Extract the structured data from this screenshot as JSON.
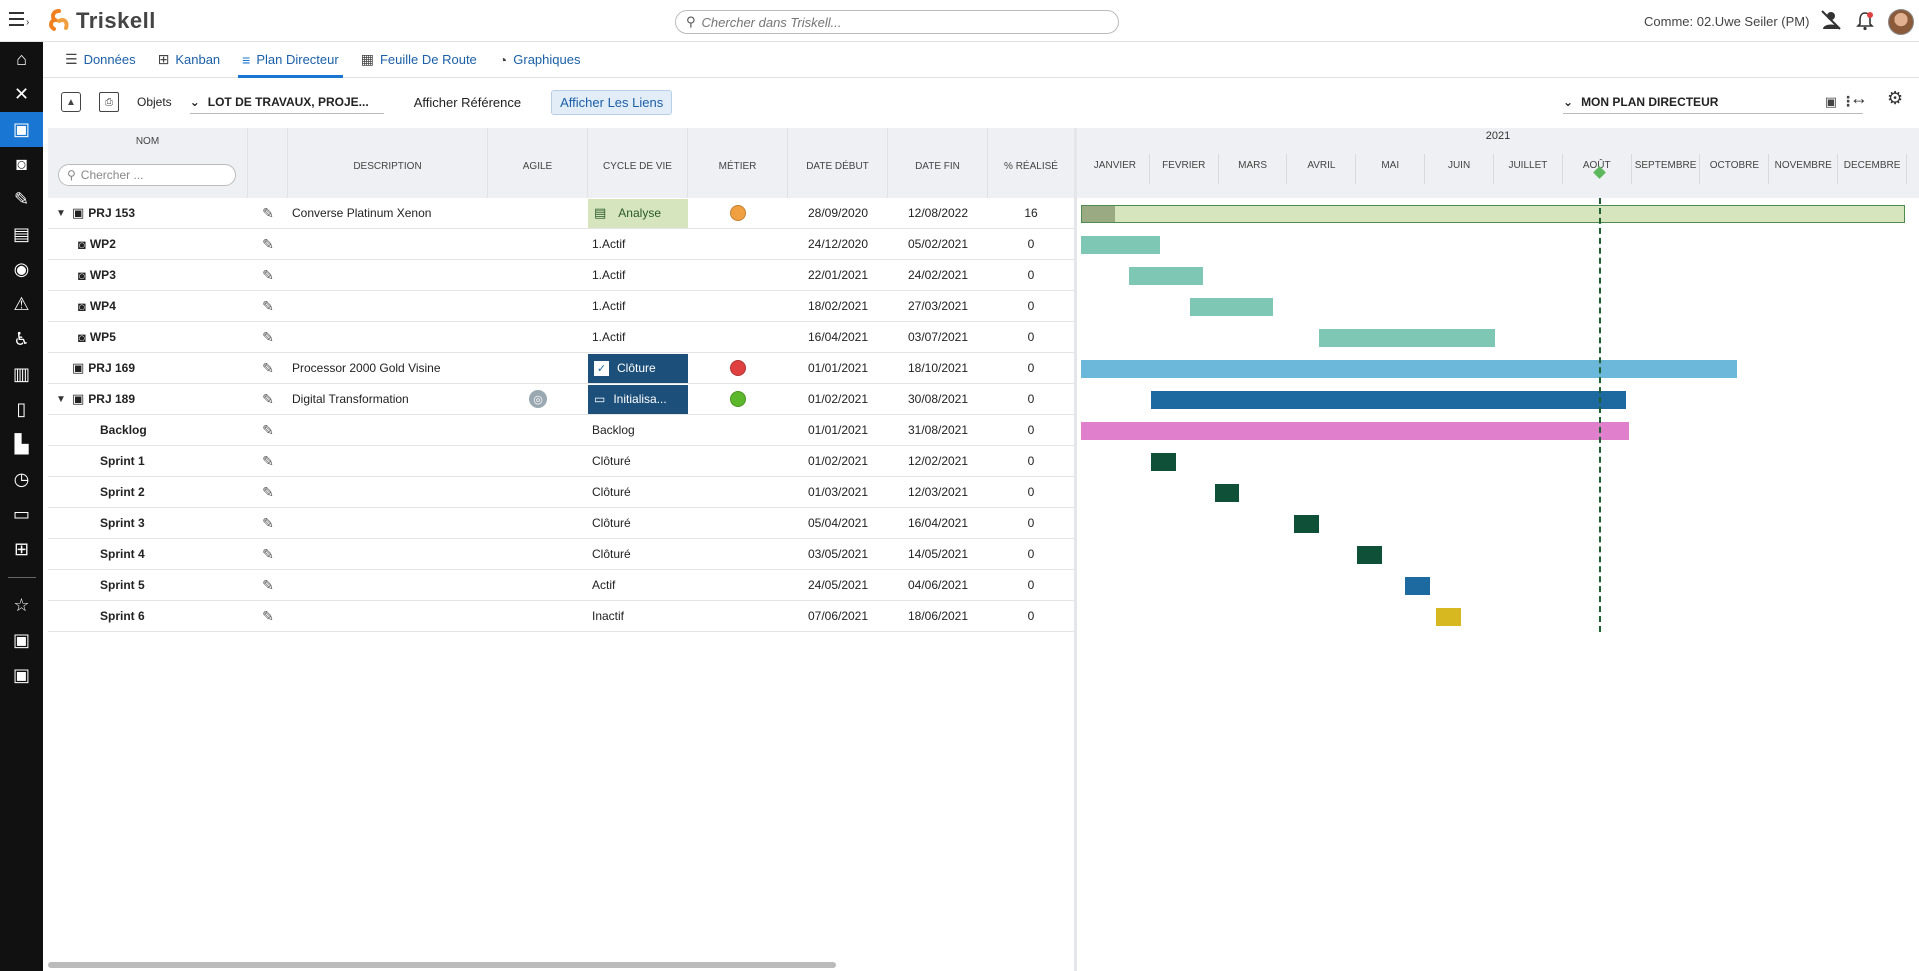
{
  "app": {
    "logo_text": "Triskell",
    "search_placeholder": "Chercher dans Triskell...",
    "user_label": "Comme: 02.Uwe Seiler (PM)"
  },
  "rail": {
    "items": [
      "home-icon",
      "tools-icon",
      "briefcase-icon",
      "briefcase-clock-icon",
      "document-edit-icon",
      "report-icon",
      "location-pin-icon",
      "warning-icon",
      "accessibility-icon",
      "briefcase-alt-icon",
      "scroll-icon",
      "chart-bars-icon",
      "clock-icon",
      "folders-icon",
      "org-chart-icon",
      "star-icon",
      "briefcase-icon",
      "briefcase-icon"
    ],
    "active_index": 2
  },
  "tabs": [
    {
      "label": "Données",
      "icon": "list-icon"
    },
    {
      "label": "Kanban",
      "icon": "kanban-icon"
    },
    {
      "label": "Plan Directeur",
      "icon": "plan-icon",
      "active": true
    },
    {
      "label": "Feuille De Route",
      "icon": "map-icon"
    },
    {
      "label": "Graphiques",
      "icon": "pie-icon"
    }
  ],
  "toolbar": {
    "objects_label": "Objets",
    "objects_select": "LOT DE TRAVAUX, PROJE...",
    "show_reference": "Afficher Référence",
    "show_links": "Afficher Les Liens",
    "plan_select": "MON PLAN DIRECTEUR"
  },
  "columns": {
    "name": "NOM",
    "name_search_placeholder": "Chercher ...",
    "description": "DESCRIPTION",
    "agile": "AGILE",
    "cycle": "CYCLE DE VIE",
    "metier": "MÉTIER",
    "start": "DATE DÉBUT",
    "end": "DATE FIN",
    "pct": "% RÉALISÉ"
  },
  "rows": [
    {
      "name": "PRJ 153",
      "level": 0,
      "expanded": true,
      "icon": "briefcase",
      "description": "Converse Platinum Xenon",
      "agile": false,
      "cycle": "Analyse",
      "cycle_style": "analyse",
      "metier_color": "#f0a040",
      "start": "28/09/2020",
      "end": "12/08/2022",
      "pct": "16"
    },
    {
      "name": "WP2",
      "level": 1,
      "icon": "wp",
      "description": "",
      "cycle": "1.Actif",
      "start": "24/12/2020",
      "end": "05/02/2021",
      "pct": "0"
    },
    {
      "name": "WP3",
      "level": 1,
      "icon": "wp",
      "description": "",
      "cycle": "1.Actif",
      "start": "22/01/2021",
      "end": "24/02/2021",
      "pct": "0"
    },
    {
      "name": "WP4",
      "level": 1,
      "icon": "wp",
      "description": "",
      "cycle": "1.Actif",
      "start": "18/02/2021",
      "end": "27/03/2021",
      "pct": "0"
    },
    {
      "name": "WP5",
      "level": 1,
      "icon": "wp",
      "description": "",
      "cycle": "1.Actif",
      "start": "16/04/2021",
      "end": "03/07/2021",
      "pct": "0"
    },
    {
      "name": "PRJ 169",
      "level": 0,
      "icon": "briefcase",
      "description": "Processor 2000 Gold Visine",
      "cycle": "Clôture",
      "cycle_style": "cloture",
      "metier_color": "#e04040",
      "start": "01/01/2021",
      "end": "18/10/2021",
      "pct": "0"
    },
    {
      "name": "PRJ 189",
      "level": 0,
      "expanded": true,
      "icon": "briefcase",
      "description": "Digital Transformation",
      "agile": true,
      "cycle": "Initialisa...",
      "cycle_style": "init",
      "metier_color": "#5cb82a",
      "start": "01/02/2021",
      "end": "30/08/2021",
      "pct": "0"
    },
    {
      "name": "Backlog",
      "level": 2,
      "description": "",
      "cycle": "Backlog",
      "start": "01/01/2021",
      "end": "31/08/2021",
      "pct": "0"
    },
    {
      "name": "Sprint 1",
      "level": 2,
      "description": "",
      "cycle": "Clôturé",
      "start": "01/02/2021",
      "end": "12/02/2021",
      "pct": "0"
    },
    {
      "name": "Sprint 2",
      "level": 2,
      "description": "",
      "cycle": "Clôturé",
      "start": "01/03/2021",
      "end": "12/03/2021",
      "pct": "0"
    },
    {
      "name": "Sprint 3",
      "level": 2,
      "description": "",
      "cycle": "Clôturé",
      "start": "05/04/2021",
      "end": "16/04/2021",
      "pct": "0"
    },
    {
      "name": "Sprint 4",
      "level": 2,
      "description": "",
      "cycle": "Clôturé",
      "start": "03/05/2021",
      "end": "14/05/2021",
      "pct": "0"
    },
    {
      "name": "Sprint 5",
      "level": 2,
      "description": "",
      "cycle": "Actif",
      "start": "24/05/2021",
      "end": "04/06/2021",
      "pct": "0"
    },
    {
      "name": "Sprint 6",
      "level": 2,
      "description": "",
      "cycle": "Inactif",
      "start": "07/06/2021",
      "end": "18/06/2021",
      "pct": "0"
    }
  ],
  "gantt": {
    "year": "2021",
    "months": [
      "JANVIER",
      "FEVRIER",
      "MARS",
      "AVRIL",
      "MAI",
      "JUIN",
      "JUILLET",
      "AOÛT",
      "SEPTEMBRE",
      "OCTOBRE",
      "NOVEMBRE",
      "DECEMBRE"
    ],
    "today": "2021-08-18",
    "bars": [
      {
        "row": 0,
        "start": "2021-01-01",
        "end": "2021-12-31",
        "color": "#d6e5bd",
        "progress": 0.16,
        "progress_color": "#9aaa82",
        "outline": "#4f8a4f",
        "clipped": true
      },
      {
        "row": 1,
        "start": "2021-01-01",
        "end": "2021-02-05",
        "color": "#7fc7b5"
      },
      {
        "row": 2,
        "start": "2021-01-22",
        "end": "2021-02-24",
        "color": "#7fc7b5"
      },
      {
        "row": 3,
        "start": "2021-02-18",
        "end": "2021-03-27",
        "color": "#7fc7b5"
      },
      {
        "row": 4,
        "start": "2021-04-16",
        "end": "2021-07-03",
        "color": "#7fc7b5"
      },
      {
        "row": 5,
        "start": "2021-01-01",
        "end": "2021-10-18",
        "color": "#6bb8db"
      },
      {
        "row": 6,
        "start": "2021-02-01",
        "end": "2021-08-30",
        "color": "#1c6aa0"
      },
      {
        "row": 7,
        "start": "2021-01-01",
        "end": "2021-08-31",
        "color": "#e07fcc"
      },
      {
        "row": 8,
        "start": "2021-02-01",
        "end": "2021-02-12",
        "color": "#0f5038"
      },
      {
        "row": 9,
        "start": "2021-03-01",
        "end": "2021-03-12",
        "color": "#0f5038"
      },
      {
        "row": 10,
        "start": "2021-04-05",
        "end": "2021-04-16",
        "color": "#0f5038"
      },
      {
        "row": 11,
        "start": "2021-05-03",
        "end": "2021-05-14",
        "color": "#0f5038"
      },
      {
        "row": 12,
        "start": "2021-05-24",
        "end": "2021-06-04",
        "color": "#1c6aa0"
      },
      {
        "row": 13,
        "start": "2021-06-07",
        "end": "2021-06-18",
        "color": "#d8b820"
      }
    ]
  }
}
